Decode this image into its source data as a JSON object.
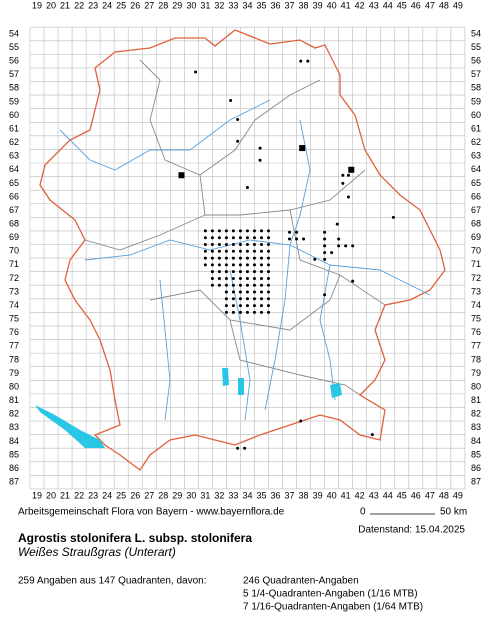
{
  "map": {
    "title": "Agrostis stolonifera L. subsp. stolonifera",
    "subtitle": "Weißes Straußgras (Unterart)",
    "credit": "Arbeitsgemeinschaft Flora von Bayern - www.bayernflora.de",
    "scale_start": "0",
    "scale_end": "50 km",
    "date": "Datenstand: 15.04.2025",
    "summary": "259 Angaben aus 147 Quadranten, davon:",
    "details": [
      "246 Quadranten-Angaben",
      "5 1/4-Quadranten-Angaben (1/16 MTB)",
      "7 1/16-Quadranten-Angaben (1/64 MTB)"
    ],
    "x_labels": [
      19,
      20,
      21,
      22,
      23,
      24,
      25,
      26,
      27,
      28,
      29,
      30,
      31,
      32,
      33,
      34,
      35,
      36,
      37,
      38,
      39,
      40,
      41,
      42,
      43,
      44,
      45,
      46,
      47,
      48,
      49
    ],
    "y_labels": [
      54,
      55,
      56,
      57,
      58,
      59,
      60,
      61,
      62,
      63,
      64,
      65,
      66,
      67,
      68,
      69,
      70,
      71,
      72,
      73,
      74,
      75,
      76,
      77,
      78,
      79,
      80,
      81,
      82,
      83,
      84,
      85,
      86,
      87
    ],
    "dot_rows": [
      {
        "row": 68.5,
        "cols": [
          31,
          31.5,
          32,
          32.5,
          33,
          33.5,
          34,
          34.5,
          35,
          35.5
        ]
      },
      {
        "row": 69,
        "cols": [
          31,
          31.5,
          32,
          32.5,
          33,
          33.5,
          34,
          34.5,
          35,
          35.5
        ]
      },
      {
        "row": 69.5,
        "cols": [
          31,
          31.5,
          32,
          32.5,
          33,
          33.5,
          34,
          34.5,
          35,
          35.5
        ]
      },
      {
        "row": 70,
        "cols": [
          31,
          31.5,
          32,
          32.5,
          33,
          33.5,
          34,
          34.5,
          35,
          35.5
        ]
      },
      {
        "row": 70.5,
        "cols": [
          31,
          31.5,
          32,
          32.5,
          33,
          33.5,
          34,
          34.5,
          35,
          35.5
        ]
      },
      {
        "row": 71,
        "cols": [
          31,
          31.5,
          32,
          32.5,
          33,
          33.5,
          34,
          34.5,
          35,
          35.5
        ]
      },
      {
        "row": 71.5,
        "cols": [
          31.5,
          32,
          32.5,
          33,
          33.5,
          34,
          34.5,
          35,
          35.5
        ]
      },
      {
        "row": 72,
        "cols": [
          31.5,
          32,
          32.5,
          33,
          33.5,
          34,
          34.5,
          35,
          35.5
        ]
      },
      {
        "row": 72.5,
        "cols": [
          31.5,
          32,
          32.5,
          33,
          33.5,
          34,
          34.5,
          35,
          35.5
        ]
      },
      {
        "row": 73,
        "cols": [
          32.5,
          33,
          33.5,
          34,
          34.5,
          35,
          35.5
        ]
      },
      {
        "row": 73.5,
        "cols": [
          32.5,
          33,
          33.5,
          34,
          34.5,
          35,
          35.5
        ]
      },
      {
        "row": 74,
        "cols": [
          32.5,
          33,
          33.5,
          34,
          34.5,
          35,
          35.5
        ]
      },
      {
        "row": 74.5,
        "cols": [
          32.5,
          33,
          33.5,
          34,
          34.5,
          35,
          35.5
        ]
      }
    ],
    "points": [
      [
        37.8,
        56
      ],
      [
        38.3,
        56
      ],
      [
        30.3,
        56.8
      ],
      [
        32.8,
        58.9
      ],
      [
        33.3,
        60.3
      ],
      [
        33.3,
        61.9
      ],
      [
        34.9,
        62.4
      ],
      [
        34.9,
        63.3
      ],
      [
        40.8,
        64.4
      ],
      [
        41.2,
        64.4
      ],
      [
        40.8,
        65
      ],
      [
        34,
        65.3
      ],
      [
        41.2,
        66
      ],
      [
        44.4,
        67.5
      ],
      [
        40.4,
        68
      ],
      [
        37,
        68.6
      ],
      [
        37.5,
        68.6
      ],
      [
        39.5,
        68.6
      ],
      [
        37,
        69.1
      ],
      [
        37.5,
        69.1
      ],
      [
        38,
        69.1
      ],
      [
        39.5,
        69.1
      ],
      [
        40.5,
        69.1
      ],
      [
        39.5,
        69.6
      ],
      [
        40.5,
        69.6
      ],
      [
        41,
        69.6
      ],
      [
        41.5,
        69.6
      ],
      [
        39.5,
        70.1
      ],
      [
        40,
        70.1
      ],
      [
        38.8,
        70.6
      ],
      [
        39.5,
        70.6
      ],
      [
        41.5,
        72.2
      ],
      [
        39.5,
        73.2
      ],
      [
        37.8,
        82.5
      ],
      [
        42.9,
        83.5
      ],
      [
        33.3,
        84.5
      ],
      [
        33.8,
        84.5
      ]
    ],
    "squares": [
      [
        37.9,
        62.4
      ],
      [
        41.4,
        64
      ],
      [
        29.3,
        64.4
      ]
    ]
  }
}
